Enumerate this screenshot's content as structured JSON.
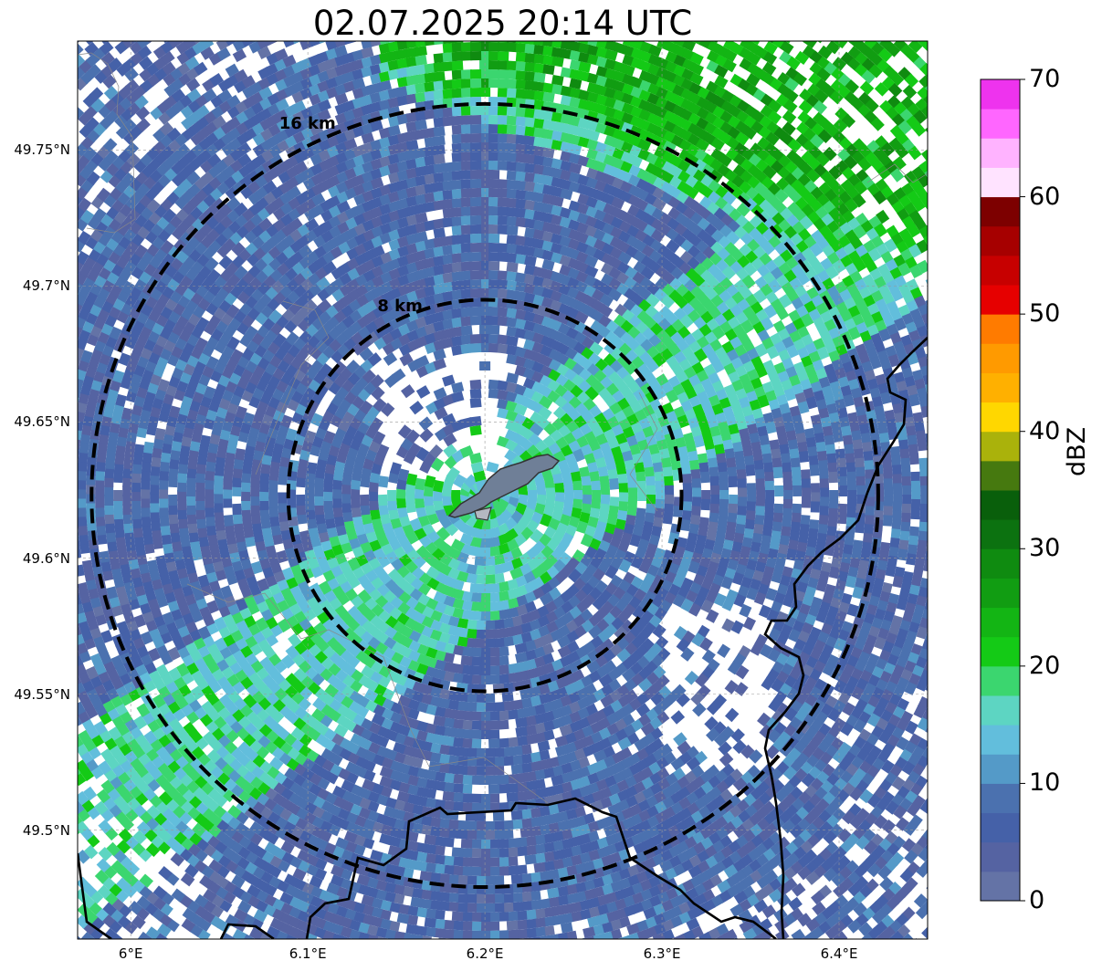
{
  "title": "02.07.2025 20:14 UTC",
  "map": {
    "lon_range": [
      5.97,
      6.45
    ],
    "lat_range": [
      49.46,
      49.79
    ],
    "radar_center": {
      "lon": 6.2,
      "lat": 49.623
    },
    "range_rings": [
      {
        "radius_km": 8,
        "label": "8 km"
      },
      {
        "radius_km": 16,
        "label": "16 km"
      }
    ],
    "lon_ticks": [
      {
        "value": 6.0,
        "label": "6°E"
      },
      {
        "value": 6.1,
        "label": "6.1°E"
      },
      {
        "value": 6.2,
        "label": "6.2°E"
      },
      {
        "value": 6.3,
        "label": "6.3°E"
      },
      {
        "value": 6.4,
        "label": "6.4°E"
      }
    ],
    "lat_ticks": [
      {
        "value": 49.75,
        "label": "49.75°N"
      },
      {
        "value": 49.7,
        "label": "49.7°N"
      },
      {
        "value": 49.65,
        "label": "49.65°N"
      },
      {
        "value": 49.6,
        "label": "49.6°N"
      },
      {
        "value": 49.55,
        "label": "49.55°N"
      },
      {
        "value": 49.5,
        "label": "49.5°N"
      }
    ],
    "gridlines": true,
    "reflectivity_pattern": {
      "background_dbz": 2,
      "northern_band_dbz": 24,
      "southwest_band_dbz": 16
    },
    "city_outline_color": "#6f7f97",
    "border_color": "#000000"
  },
  "colorbar": {
    "label": "dBZ",
    "vmin": 0,
    "vmax": 70,
    "ticks": [
      0,
      10,
      20,
      30,
      40,
      50,
      60,
      70
    ],
    "colors": [
      "#6473a6",
      "#5563a2",
      "#4561a8",
      "#4b71af",
      "#549ac8",
      "#62bedc",
      "#5dd5c2",
      "#3bd66f",
      "#14ca16",
      "#13b514",
      "#119d12",
      "#0f8b10",
      "#0c7210",
      "#095f0b",
      "#46790f",
      "#aab20b",
      "#ffd700",
      "#ffb000",
      "#ff9a00",
      "#ff7b00",
      "#e60000",
      "#c70000",
      "#a60000",
      "#7d0000",
      "#ffe3ff",
      "#ffb3ff",
      "#ff66ff",
      "#ee33ee"
    ]
  }
}
